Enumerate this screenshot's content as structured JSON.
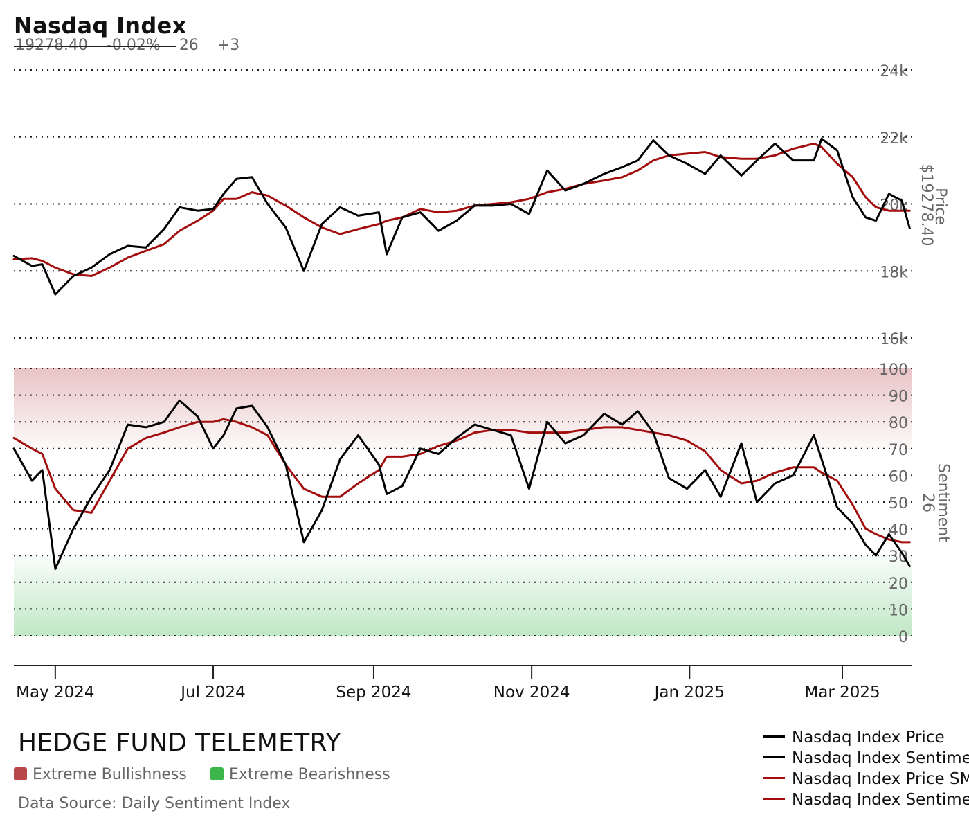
{
  "header": {
    "title": "Nasdaq Index",
    "price": "19278.40",
    "change": "-0.02%",
    "sentiment": "26",
    "sentiment_change": "+3"
  },
  "footer": {
    "brand": "HEDGE FUND TELEMETRY",
    "extreme_bull_label": "Extreme Bullishness",
    "extreme_bear_label": "Extreme Bearishness",
    "source": "Data Source: Daily Sentiment Index"
  },
  "colors": {
    "price": "#000000",
    "sentiment": "#000000",
    "sma": "#a30d0d",
    "bull_zone": "#b8474a",
    "bear_zone": "#3cb54a",
    "grid": "#222222",
    "axis_text": "#666666"
  },
  "legend": [
    {
      "label": "Nasdaq Index Price",
      "color": "#000000"
    },
    {
      "label": "Nasdaq Index Sentiment",
      "color": "#000000"
    },
    {
      "label": "Nasdaq Index Price SMA",
      "color": "#a30d0d"
    },
    {
      "label": "Nasdaq Index Sentiment SMA",
      "color": "#a30d0d"
    }
  ],
  "chart_data": [
    {
      "type": "line",
      "title": "Nasdaq Index",
      "ylabel": "Price",
      "ylabel_value": "$19278.40",
      "ylim": [
        16000,
        24000
      ],
      "yticks": [
        16000,
        18000,
        20000,
        22000,
        24000
      ],
      "ytick_labels": [
        "16k",
        "18k",
        "20k",
        "22k",
        "24k"
      ],
      "grid": true,
      "x": [
        "2024-04-15",
        "2024-04-22",
        "2024-04-26",
        "2024-05-01",
        "2024-05-08",
        "2024-05-15",
        "2024-05-22",
        "2024-05-29",
        "2024-06-05",
        "2024-06-12",
        "2024-06-18",
        "2024-06-25",
        "2024-07-01",
        "2024-07-05",
        "2024-07-10",
        "2024-07-16",
        "2024-07-22",
        "2024-07-29",
        "2024-08-05",
        "2024-08-12",
        "2024-08-19",
        "2024-08-26",
        "2024-09-03",
        "2024-09-06",
        "2024-09-12",
        "2024-09-19",
        "2024-09-26",
        "2024-10-03",
        "2024-10-10",
        "2024-10-17",
        "2024-10-24",
        "2024-10-31",
        "2024-11-07",
        "2024-11-14",
        "2024-11-21",
        "2024-11-29",
        "2024-12-06",
        "2024-12-12",
        "2024-12-18",
        "2024-12-24",
        "2024-12-31",
        "2025-01-07",
        "2025-01-13",
        "2025-01-21",
        "2025-01-27",
        "2025-02-03",
        "2025-02-10",
        "2025-02-18",
        "2025-02-21",
        "2025-02-27",
        "2025-03-05",
        "2025-03-10",
        "2025-03-14",
        "2025-03-19",
        "2025-03-24",
        "2025-03-27"
      ],
      "series": [
        {
          "name": "Nasdaq Index Price",
          "values": [
            18450,
            18150,
            18200,
            17300,
            17850,
            18100,
            18500,
            18750,
            18700,
            19250,
            19900,
            19800,
            19850,
            20300,
            20750,
            20800,
            20000,
            19300,
            18000,
            19400,
            19900,
            19650,
            19750,
            18500,
            19600,
            19750,
            19200,
            19500,
            19950,
            19950,
            20000,
            19700,
            21000,
            20400,
            20600,
            20900,
            21100,
            21300,
            21900,
            21450,
            21200,
            20900,
            21450,
            20850,
            21300,
            21800,
            21300,
            21300,
            21950,
            21600,
            20200,
            19600,
            19500,
            20300,
            20100,
            19278.4
          ]
        },
        {
          "name": "Nasdaq Index Price SMA",
          "values": [
            18350,
            18380,
            18300,
            18100,
            17900,
            17850,
            18100,
            18400,
            18600,
            18800,
            19200,
            19500,
            19800,
            20150,
            20150,
            20350,
            20250,
            19950,
            19600,
            19300,
            19100,
            19250,
            19400,
            19500,
            19600,
            19850,
            19750,
            19800,
            19950,
            20000,
            20050,
            20150,
            20350,
            20450,
            20600,
            20700,
            20800,
            21000,
            21300,
            21450,
            21500,
            21550,
            21400,
            21350,
            21350,
            21450,
            21650,
            21800,
            21700,
            21200,
            20800,
            20200,
            19900,
            19800,
            19800,
            19800
          ]
        }
      ]
    },
    {
      "type": "line",
      "ylabel": "Sentiment",
      "ylabel_value": "26",
      "ylim": [
        0,
        100
      ],
      "yticks": [
        0,
        10,
        20,
        30,
        40,
        50,
        60,
        70,
        80,
        90,
        100
      ],
      "grid": true,
      "zones": [
        {
          "name": "Extreme Bullishness",
          "range": [
            70,
            100
          ]
        },
        {
          "name": "Extreme Bearishness",
          "range": [
            0,
            30
          ]
        }
      ],
      "x": [
        "2024-04-15",
        "2024-04-22",
        "2024-04-26",
        "2024-05-01",
        "2024-05-08",
        "2024-05-15",
        "2024-05-22",
        "2024-05-29",
        "2024-06-05",
        "2024-06-12",
        "2024-06-18",
        "2024-06-25",
        "2024-07-01",
        "2024-07-05",
        "2024-07-10",
        "2024-07-16",
        "2024-07-22",
        "2024-07-29",
        "2024-08-05",
        "2024-08-12",
        "2024-08-19",
        "2024-08-26",
        "2024-09-03",
        "2024-09-06",
        "2024-09-12",
        "2024-09-19",
        "2024-09-26",
        "2024-10-03",
        "2024-10-10",
        "2024-10-17",
        "2024-10-24",
        "2024-10-31",
        "2024-11-07",
        "2024-11-14",
        "2024-11-21",
        "2024-11-29",
        "2024-12-06",
        "2024-12-12",
        "2024-12-18",
        "2024-12-24",
        "2024-12-31",
        "2025-01-07",
        "2025-01-13",
        "2025-01-21",
        "2025-01-27",
        "2025-02-03",
        "2025-02-10",
        "2025-02-18",
        "2025-02-21",
        "2025-02-27",
        "2025-03-05",
        "2025-03-10",
        "2025-03-14",
        "2025-03-19",
        "2025-03-24",
        "2025-03-27"
      ],
      "series": [
        {
          "name": "Nasdaq Index Sentiment",
          "values": [
            70,
            58,
            62,
            25,
            40,
            52,
            62,
            79,
            78,
            80,
            88,
            82,
            70,
            75,
            85,
            86,
            78,
            64,
            35,
            47,
            66,
            75,
            64,
            53,
            56,
            70,
            68,
            74,
            79,
            77,
            75,
            55,
            80,
            72,
            75,
            83,
            79,
            84,
            76,
            59,
            55,
            62,
            52,
            72,
            50,
            57,
            60,
            75,
            66,
            48,
            42,
            34,
            30,
            38,
            31,
            26
          ]
        },
        {
          "name": "Nasdaq Index Sentiment SMA",
          "values": [
            74,
            70,
            68,
            55,
            47,
            46,
            58,
            70,
            74,
            76,
            78,
            80,
            80,
            81,
            80,
            78,
            75,
            64,
            55,
            52,
            52,
            57,
            62,
            67,
            67,
            68,
            71,
            73,
            76,
            77,
            77,
            76,
            76,
            76,
            77,
            78,
            78,
            77,
            76,
            75,
            73,
            69,
            62,
            57,
            58,
            61,
            63,
            63,
            61,
            58,
            49,
            40,
            38,
            36,
            35,
            35
          ]
        }
      ]
    }
  ],
  "x_axis": {
    "labels": [
      "May 2024",
      "Jul 2024",
      "Sep 2024",
      "Nov 2024",
      "Jan 2025",
      "Mar 2025"
    ],
    "dates": [
      "2024-05-01",
      "2024-07-01",
      "2024-09-01",
      "2024-11-01",
      "2025-01-01",
      "2025-03-01"
    ]
  }
}
